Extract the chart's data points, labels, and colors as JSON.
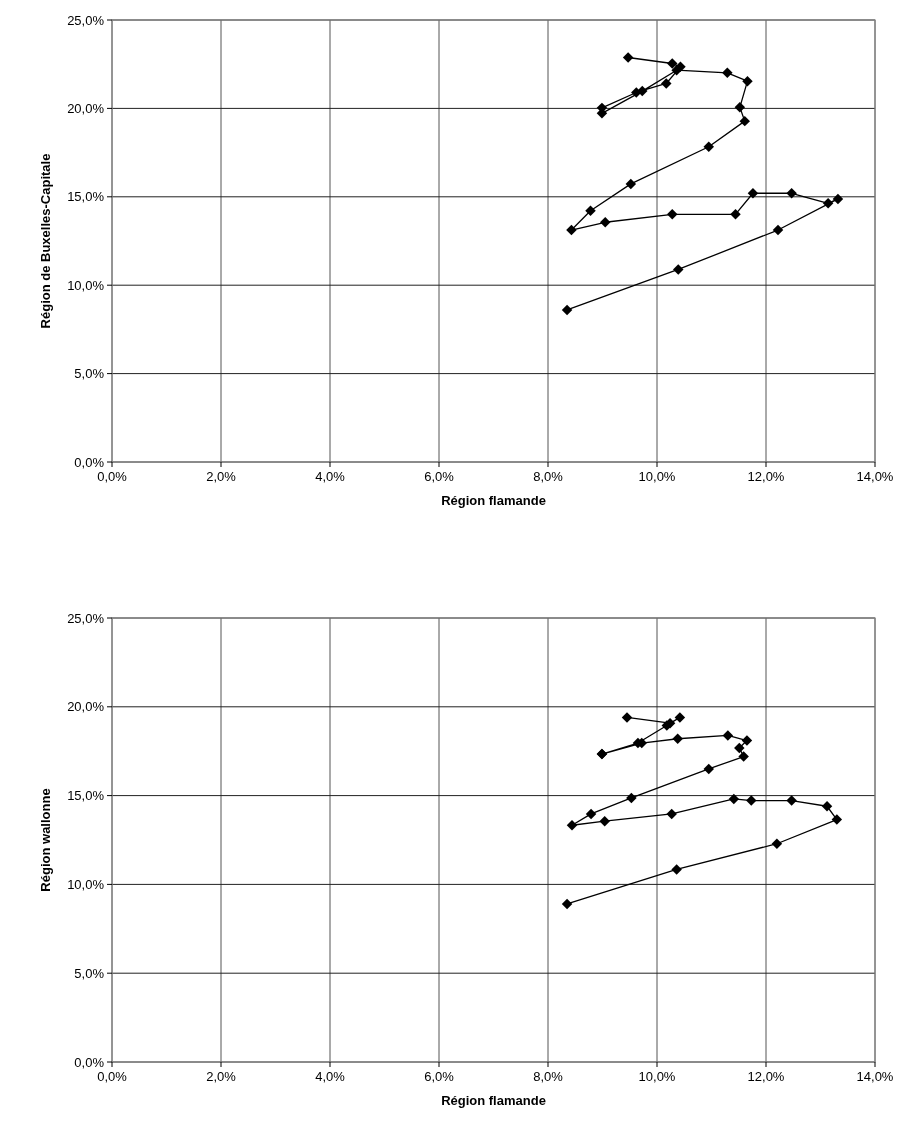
{
  "chart_data": [
    {
      "type": "line",
      "xlabel": "Région flamande",
      "ylabel": "Région de Buxelles-Capitale",
      "marker": "diamond",
      "line_style": "solid",
      "grid": true,
      "x": [
        8.35,
        10.39,
        12.22,
        13.32,
        13.14,
        12.47,
        11.76,
        11.44,
        10.28,
        9.05,
        8.43,
        8.78,
        9.52,
        10.95,
        11.61,
        11.52,
        11.66,
        11.29,
        10.36,
        9.73,
        8.99,
        8.99,
        9.62,
        10.17,
        10.43,
        10.28,
        9.47
      ],
      "series": [
        {
          "color": "#000000",
          "values": [
            8.6,
            10.89,
            13.12,
            14.88,
            14.63,
            15.2,
            15.2,
            14.01,
            14.01,
            13.56,
            13.12,
            14.21,
            15.73,
            17.83,
            19.28,
            20.06,
            21.54,
            22.01,
            22.16,
            20.98,
            19.72,
            20.03,
            20.9,
            21.41,
            22.35,
            22.54,
            22.88
          ]
        }
      ],
      "xlim": [
        0,
        14
      ],
      "xticks": [
        {
          "value": 0,
          "label": "0,0%"
        },
        {
          "value": 2,
          "label": "2,0%"
        },
        {
          "value": 4,
          "label": "4,0%"
        },
        {
          "value": 6,
          "label": "6,0%"
        },
        {
          "value": 8,
          "label": "8,0%"
        },
        {
          "value": 10,
          "label": "10,0%"
        },
        {
          "value": 12,
          "label": "12,0%"
        },
        {
          "value": 14,
          "label": "14,0%"
        }
      ],
      "ylim": [
        0,
        25
      ],
      "yticks": [
        {
          "value": 0,
          "label": "0,0%"
        },
        {
          "value": 5,
          "label": "5,0%"
        },
        {
          "value": 10,
          "label": "10,0%"
        },
        {
          "value": 15,
          "label": "15,0%"
        },
        {
          "value": 20,
          "label": "20,0%"
        },
        {
          "value": 25,
          "label": "25,0%"
        }
      ]
    },
    {
      "type": "line",
      "xlabel": "Région flamande",
      "ylabel": "Région wallonne",
      "marker": "diamond",
      "line_style": "solid",
      "grid": true,
      "x": [
        8.35,
        10.36,
        12.2,
        13.3,
        13.12,
        12.47,
        11.73,
        11.41,
        10.27,
        9.04,
        8.44,
        8.79,
        9.53,
        10.95,
        11.59,
        11.51,
        11.65,
        11.3,
        10.38,
        9.72,
        8.99,
        8.99,
        9.65,
        10.18,
        10.42,
        10.24,
        9.45
      ],
      "series": [
        {
          "color": "#000000",
          "values": [
            8.9,
            10.84,
            12.29,
            13.65,
            14.4,
            14.72,
            14.72,
            14.81,
            13.97,
            13.56,
            13.33,
            13.97,
            14.87,
            16.5,
            17.2,
            17.68,
            18.1,
            18.39,
            18.2,
            17.96,
            17.34,
            17.34,
            17.96,
            18.95,
            19.4,
            19.08,
            19.4
          ]
        }
      ],
      "xlim": [
        0,
        14
      ],
      "xticks": [
        {
          "value": 0,
          "label": "0,0%"
        },
        {
          "value": 2,
          "label": "2,0%"
        },
        {
          "value": 4,
          "label": "4,0%"
        },
        {
          "value": 6,
          "label": "6,0%"
        },
        {
          "value": 8,
          "label": "8,0%"
        },
        {
          "value": 10,
          "label": "10,0%"
        },
        {
          "value": 12,
          "label": "12,0%"
        },
        {
          "value": 14,
          "label": "14,0%"
        }
      ],
      "ylim": [
        0,
        25
      ],
      "yticks": [
        {
          "value": 0,
          "label": "0,0%"
        },
        {
          "value": 5,
          "label": "5,0%"
        },
        {
          "value": 10,
          "label": "10,0%"
        },
        {
          "value": 15,
          "label": "15,0%"
        },
        {
          "value": 20,
          "label": "20,0%"
        },
        {
          "value": 25,
          "label": "25,0%"
        }
      ]
    }
  ]
}
